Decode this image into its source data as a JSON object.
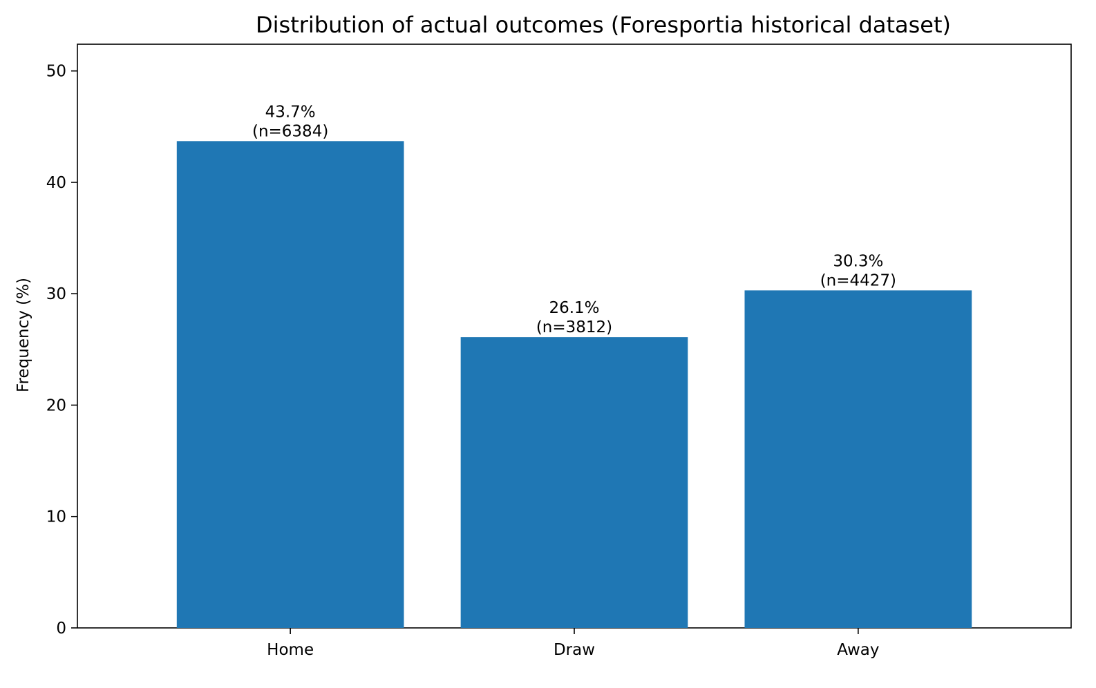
{
  "chart_data": {
    "type": "bar",
    "title": "Distribution of actual outcomes (Foresportia historical dataset)",
    "xlabel": "",
    "ylabel": "Frequency (%)",
    "categories": [
      "Home",
      "Draw",
      "Away"
    ],
    "values": [
      43.7,
      26.1,
      30.3
    ],
    "counts": [
      6384,
      3812,
      4427
    ],
    "bar_labels": [
      [
        "43.7%",
        "(n=6384)"
      ],
      [
        "26.1%",
        "(n=3812)"
      ],
      [
        "30.3%",
        "(n=4427)"
      ]
    ],
    "yticks": [
      0,
      10,
      20,
      30,
      40,
      50
    ],
    "ylim": [
      0,
      52.4
    ],
    "grid": false,
    "legend": "none",
    "bar_color": "#1f77b4"
  }
}
